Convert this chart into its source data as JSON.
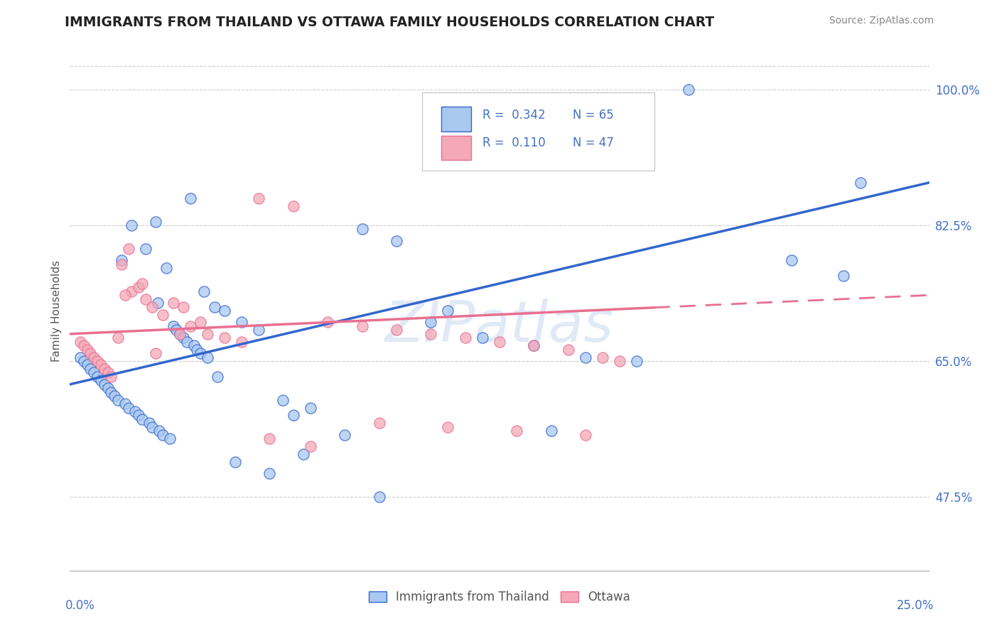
{
  "title": "IMMIGRANTS FROM THAILAND VS OTTAWA FAMILY HOUSEHOLDS CORRELATION CHART",
  "source": "Source: ZipAtlas.com",
  "ylabel": "Family Households",
  "yticks": [
    47.5,
    65.0,
    82.5,
    100.0
  ],
  "ytick_labels": [
    "47.5%",
    "65.0%",
    "82.5%",
    "100.0%"
  ],
  "xmin": 0.0,
  "xmax": 25.0,
  "ymin": 38.0,
  "ymax": 105.0,
  "blue_color": "#A8C8F0",
  "pink_color": "#F4A8B8",
  "blue_line_color": "#3366CC",
  "pink_line_color": "#E87090",
  "text_color": "#4472C4",
  "watermark": "ZIPatlas",
  "blue_line_x0": 0.0,
  "blue_line_y0": 62.0,
  "blue_line_x1": 25.0,
  "blue_line_y1": 88.0,
  "pink_line_x0": 0.0,
  "pink_line_y0": 68.5,
  "pink_line_x1": 25.0,
  "pink_line_y1": 73.5,
  "pink_line_solid_end": 17.0,
  "blue_x": [
    1.5,
    1.8,
    2.2,
    2.5,
    2.8,
    3.5,
    0.3,
    0.4,
    0.5,
    0.6,
    0.7,
    0.8,
    0.9,
    1.0,
    1.1,
    1.2,
    1.3,
    1.4,
    1.6,
    1.7,
    1.9,
    2.0,
    2.1,
    2.3,
    2.4,
    2.6,
    2.7,
    2.9,
    3.0,
    3.1,
    3.2,
    3.3,
    3.4,
    3.6,
    3.7,
    3.8,
    4.0,
    4.2,
    4.5,
    5.0,
    5.5,
    6.2,
    7.0,
    8.5,
    9.5,
    10.5,
    12.0,
    13.5,
    15.0,
    16.5,
    18.0,
    21.0,
    22.5,
    14.0,
    6.8,
    4.8,
    9.0,
    5.8,
    3.9,
    2.55,
    23.0,
    4.3,
    11.0,
    6.5,
    8.0
  ],
  "blue_y": [
    78.0,
    82.5,
    79.5,
    83.0,
    77.0,
    86.0,
    65.5,
    65.0,
    64.5,
    64.0,
    63.5,
    63.0,
    62.5,
    62.0,
    61.5,
    61.0,
    60.5,
    60.0,
    59.5,
    59.0,
    58.5,
    58.0,
    57.5,
    57.0,
    56.5,
    56.0,
    55.5,
    55.0,
    69.5,
    69.0,
    68.5,
    68.0,
    67.5,
    67.0,
    66.5,
    66.0,
    65.5,
    72.0,
    71.5,
    70.0,
    69.0,
    60.0,
    59.0,
    82.0,
    80.5,
    70.0,
    68.0,
    67.0,
    65.5,
    65.0,
    100.0,
    78.0,
    76.0,
    56.0,
    53.0,
    52.0,
    47.5,
    50.5,
    74.0,
    72.5,
    88.0,
    63.0,
    71.5,
    58.0,
    55.5
  ],
  "pink_x": [
    0.3,
    0.4,
    0.5,
    0.6,
    0.7,
    0.8,
    0.9,
    1.0,
    1.1,
    1.2,
    1.4,
    1.5,
    1.7,
    1.8,
    2.0,
    2.2,
    2.4,
    2.7,
    3.0,
    3.3,
    3.5,
    3.8,
    4.0,
    4.5,
    5.0,
    5.5,
    6.5,
    7.5,
    8.5,
    9.5,
    10.5,
    11.5,
    12.5,
    13.5,
    14.5,
    15.5,
    16.0,
    1.6,
    2.1,
    2.5,
    3.2,
    5.8,
    7.0,
    9.0,
    11.0,
    13.0,
    15.0
  ],
  "pink_y": [
    67.5,
    67.0,
    66.5,
    66.0,
    65.5,
    65.0,
    64.5,
    64.0,
    63.5,
    63.0,
    68.0,
    77.5,
    79.5,
    74.0,
    74.5,
    73.0,
    72.0,
    71.0,
    72.5,
    72.0,
    69.5,
    70.0,
    68.5,
    68.0,
    67.5,
    86.0,
    85.0,
    70.0,
    69.5,
    69.0,
    68.5,
    68.0,
    67.5,
    67.0,
    66.5,
    65.5,
    65.0,
    73.5,
    75.0,
    66.0,
    68.5,
    55.0,
    54.0,
    57.0,
    56.5,
    56.0,
    55.5
  ]
}
